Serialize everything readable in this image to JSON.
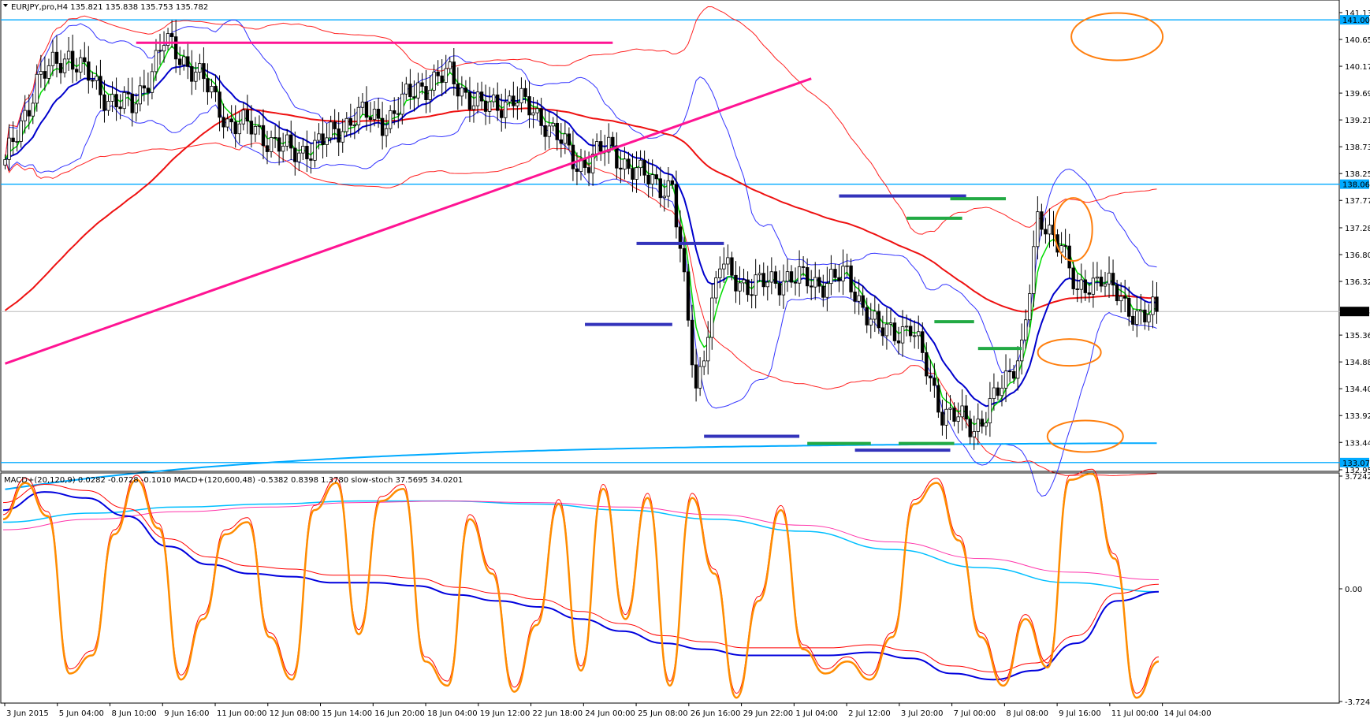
{
  "header": {
    "price_info": "EURJPY,pro,H4  135.821 135.838 135.753 135.782",
    "indicator_info": "MACD+(20,120,9) 0.0282 -0.0728 -0.1010   MACD+(120,600,48) -0.5382 0.8398 1.3780   slow-stoch 37.5695 34.0201"
  },
  "colors": {
    "bull_body": "#ffffff",
    "bear_body": "#000000",
    "wick": "#000000",
    "ema_fast": "#00dd00",
    "ema_mid": "#0000cc",
    "bollinger": "#3333ff",
    "ma_long": "#ee1111",
    "ma_thin": "#ff2222",
    "hline": "#00aaff",
    "trendline": "#ff1493",
    "level_blue": "#3333bb",
    "level_green": "#22aa44",
    "ellipse": "#ff7f0e",
    "stoch": "#ff8c00",
    "macd_blue": "#0000dd",
    "macd_signal": "#ff0000",
    "macd2_cyan": "#00bfff",
    "macd2_magenta": "#ff33aa"
  },
  "chart_data": [
    {
      "type": "candlestick",
      "symbol": "EURJPY",
      "timeframe": "H4",
      "ylim": [
        132.95,
        141.13
      ],
      "y_ticks": [
        "141.130",
        "140.650",
        "140.170",
        "139.690",
        "139.210",
        "138.730",
        "138.250",
        "137.770",
        "137.280",
        "136.800",
        "136.320",
        "135.360",
        "134.880",
        "134.400",
        "133.920",
        "133.440",
        "132.950"
      ],
      "x_labels": [
        "3 Jun 2015",
        "5 Jun 04:00",
        "8 Jun 10:00",
        "9 Jun 16:00",
        "11 Jun 00:00",
        "12 Jun 08:00",
        "15 Jun 14:00",
        "16 Jun 20:00",
        "18 Jun 04:00",
        "19 Jun 12:00",
        "22 Jun 18:00",
        "24 Jun 00:00",
        "25 Jun 08:00",
        "26 Jun 16:00",
        "29 Jun 22:00",
        "1 Jul 04:00",
        "2 Jul 12:00",
        "3 Jul 20:00",
        "7 Jul 00:00",
        "8 Jul 08:00",
        "9 Jul 16:00",
        "11 Jul 00:00",
        "14 Jul 04:00"
      ],
      "horizontal_lines": [
        {
          "price": 141.001,
          "label": "141.001"
        },
        {
          "price": 138.06,
          "label": "138.060"
        },
        {
          "price": 133.079,
          "label": "133.079"
        }
      ],
      "current_price": {
        "price": 135.782,
        "label": "135.782"
      },
      "close_anchors": [
        [
          0,
          138.4
        ],
        [
          8,
          139.9
        ],
        [
          16,
          140.4
        ],
        [
          24,
          139.7
        ],
        [
          32,
          139.4
        ],
        [
          40,
          140.6
        ],
        [
          48,
          140.1
        ],
        [
          56,
          139.2
        ],
        [
          64,
          139.0
        ],
        [
          72,
          138.6
        ],
        [
          80,
          138.8
        ],
        [
          88,
          139.3
        ],
        [
          96,
          139.2
        ],
        [
          104,
          139.8
        ],
        [
          112,
          140.0
        ],
        [
          120,
          139.4
        ],
        [
          128,
          139.6
        ],
        [
          136,
          139.2
        ],
        [
          144,
          138.4
        ],
        [
          152,
          138.7
        ],
        [
          160,
          138.2
        ],
        [
          168,
          138.0
        ],
        [
          174,
          134.4
        ],
        [
          180,
          136.6
        ],
        [
          188,
          136.2
        ],
        [
          196,
          136.4
        ],
        [
          204,
          136.3
        ],
        [
          212,
          136.4
        ],
        [
          220,
          135.4
        ],
        [
          228,
          135.5
        ],
        [
          236,
          134.0
        ],
        [
          244,
          133.7
        ],
        [
          252,
          134.5
        ],
        [
          256,
          135.2
        ],
        [
          260,
          137.3
        ],
        [
          266,
          137.1
        ],
        [
          270,
          136.0
        ],
        [
          276,
          136.5
        ],
        [
          282,
          135.8
        ],
        [
          290,
          135.78
        ]
      ],
      "ellipses": 4
    },
    {
      "type": "line",
      "panel": "MACD / slow-stoch",
      "ylim": [
        -3.7242,
        3.7242
      ],
      "y_ticks": [
        "3.7242",
        "0.00",
        "-3.7242"
      ],
      "series": [
        {
          "name": "slow-stoch %K",
          "values": [
            2.3,
            3.5,
            2.4,
            -2.8,
            -2.2,
            1.8,
            3.6,
            2.0,
            -3.0,
            -1.0,
            1.8,
            2.2,
            -1.6,
            -3.0,
            2.6,
            3.5,
            -1.5,
            2.9,
            3.3,
            -2.4,
            -3.2,
            2.3,
            0.5,
            -3.4,
            -1.2,
            2.8,
            -2.7,
            3.3,
            -1.0,
            3.0,
            -3.2,
            3.0,
            0.5,
            -3.6,
            -0.4,
            2.6,
            -2.0,
            -2.8,
            -2.4,
            -3.0,
            -1.6,
            2.8,
            3.5,
            1.6,
            -1.6,
            -3.2,
            -1.0,
            -2.6,
            3.6,
            3.8,
            1.0,
            -3.6,
            -2.4
          ]
        },
        {
          "name": "MACD(20,120)",
          "values": [
            2.6,
            3.2,
            3.0,
            2.4,
            1.4,
            0.8,
            0.5,
            0.4,
            0.2,
            0.2,
            0.1,
            -0.2,
            -0.4,
            -0.6,
            -1.0,
            -1.4,
            -1.8,
            -2.0,
            -2.2,
            -2.2,
            -2.2,
            -2.1,
            -2.3,
            -2.8,
            -3.0,
            -2.7,
            -1.8,
            -0.4,
            -0.1
          ]
        },
        {
          "name": "MACD(120,600)",
          "values": [
            2.5,
            2.8,
            3.0,
            3.1,
            3.2,
            3.2,
            3.1,
            2.9,
            2.6,
            2.2,
            1.6,
            1.0,
            0.5,
            0.2
          ]
        }
      ]
    }
  ]
}
